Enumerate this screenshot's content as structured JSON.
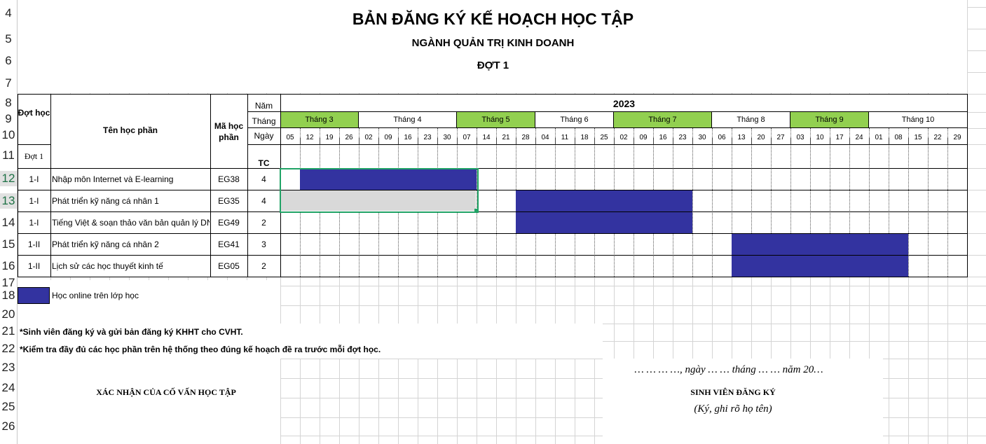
{
  "row_numbers": [
    "4",
    "5",
    "6",
    "7",
    "8",
    "9",
    "10",
    "11",
    "12",
    "13",
    "14",
    "15",
    "16",
    "17",
    "18",
    "20",
    "21",
    "22",
    "23",
    "24",
    "25",
    "26"
  ],
  "title": "BẢN ĐĂNG KÝ KẾ HOẠCH HỌC TẬP",
  "major": "NGÀNH QUẢN TRỊ KINH DOANH",
  "batch": "ĐỢT 1",
  "header": {
    "dot_hoc": "Đợt học",
    "dot_1": "Đợt 1",
    "ten_hoc_phan": "Tên học phần",
    "ma_hoc_phan": "Mã học phần",
    "nam": "Năm",
    "thang": "Tháng",
    "ngay": "Ngày",
    "tc": "TC",
    "year": "2023"
  },
  "months": [
    {
      "label": "Tháng 3",
      "color": "#92d050"
    },
    {
      "label": "Tháng 4",
      "color": "#ffffff"
    },
    {
      "label": "Tháng 5",
      "color": "#92d050"
    },
    {
      "label": "Tháng 6",
      "color": "#ffffff"
    },
    {
      "label": "Tháng 7",
      "color": "#92d050"
    },
    {
      "label": "Tháng 8",
      "color": "#ffffff"
    },
    {
      "label": "Tháng 9",
      "color": "#92d050"
    },
    {
      "label": "Tháng 10",
      "color": "#ffffff"
    }
  ],
  "days": [
    "05",
    "12",
    "19",
    "26",
    "02",
    "09",
    "16",
    "23",
    "30",
    "07",
    "14",
    "21",
    "28",
    "04",
    "11",
    "18",
    "25",
    "02",
    "09",
    "16",
    "23",
    "30",
    "06",
    "13",
    "20",
    "27",
    "03",
    "10",
    "17",
    "24",
    "01",
    "08",
    "15",
    "22",
    "29"
  ],
  "courses": [
    {
      "dot": "1-I",
      "name": "Nhập môn Internet và E-learning",
      "code": "EG38",
      "tc": "4"
    },
    {
      "dot": "1-I",
      "name": "Phát triển kỹ năng cá nhân 1",
      "code": "EG35",
      "tc": "4"
    },
    {
      "dot": "1-I",
      "name": "Tiếng Việt & soạn thảo văn bản quản lý DN",
      "code": "EG49",
      "tc": "2"
    },
    {
      "dot": "1-II",
      "name": "Phát triển kỹ năng cá nhân 2",
      "code": "EG41",
      "tc": "3"
    },
    {
      "dot": "1-II",
      "name": "Lịch sử các học thuyết kinh tế",
      "code": "EG05",
      "tc": "2"
    }
  ],
  "bar_color": "#3333a0",
  "legend": "Học online trên lớp học",
  "note1": "*Sinh viên đăng ký và gửi bản đăng ký KHHT cho CVHT.",
  "note2": "*Kiểm tra đầy đủ các học phần trên hệ thống theo đúng kế hoạch đề ra trước mỗi đợt học.",
  "date_line": "… … … …, ngày  … … tháng  … … năm 20…",
  "advisor": "XÁC NHẬN CỦA CỐ VẤN HỌC TẬP",
  "student": "SINH VIÊN ĐĂNG KÝ",
  "sign_note": "(Ký, ghi rõ họ tên)"
}
